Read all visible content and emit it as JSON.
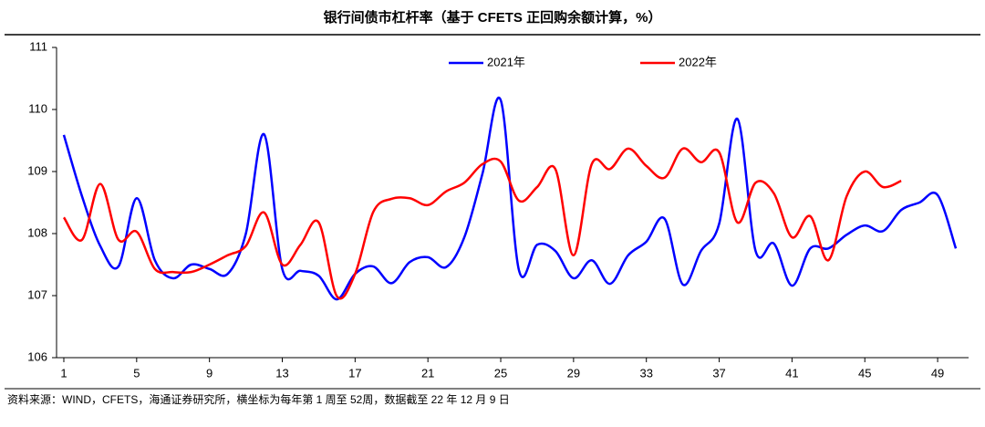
{
  "chart_data": {
    "type": "line",
    "title": "银行间债市杠杆率（基于 CFETS 正回购余额计算，%）",
    "source": "资料来源：WIND，CFETS，海通证券研究所，横坐标为每年第 1 周至 52周，数据截至 22 年 12 月 9 日",
    "x": [
      1,
      2,
      3,
      4,
      5,
      6,
      7,
      8,
      9,
      10,
      11,
      12,
      13,
      14,
      15,
      16,
      17,
      18,
      19,
      20,
      21,
      22,
      23,
      24,
      25,
      26,
      27,
      28,
      29,
      30,
      31,
      32,
      33,
      34,
      35,
      36,
      37,
      38,
      39,
      40,
      41,
      42,
      43,
      44,
      45,
      46,
      47,
      48,
      49,
      50
    ],
    "series": [
      {
        "name": "2021年",
        "color": "#0000ff",
        "values": [
          109.59,
          108.6,
          107.8,
          107.47,
          108.57,
          107.57,
          107.28,
          107.5,
          107.43,
          107.35,
          108.0,
          109.6,
          107.43,
          107.4,
          107.32,
          106.94,
          107.35,
          107.47,
          107.2,
          107.54,
          107.62,
          107.46,
          107.94,
          108.97,
          110.15,
          107.41,
          107.82,
          107.72,
          107.28,
          107.57,
          107.19,
          107.65,
          107.87,
          108.24,
          107.18,
          107.72,
          108.16,
          109.85,
          107.72,
          107.84,
          107.16,
          107.76,
          107.76,
          107.98,
          108.13,
          108.04,
          108.38,
          108.5,
          108.62,
          107.76
        ]
      },
      {
        "name": "2022年",
        "color": "#ff0000",
        "values": [
          108.26,
          107.9,
          108.8,
          107.9,
          108.03,
          107.43,
          107.38,
          107.38,
          107.5,
          107.65,
          107.8,
          108.34,
          107.5,
          107.82,
          108.18,
          106.99,
          107.35,
          108.35,
          108.56,
          108.57,
          108.46,
          108.68,
          108.82,
          109.12,
          109.16,
          108.53,
          108.75,
          109.04,
          107.65,
          109.12,
          109.04,
          109.37,
          109.09,
          108.9,
          109.37,
          109.15,
          109.31,
          108.18,
          108.82,
          108.65,
          107.94,
          108.28,
          107.57,
          108.6,
          109.0,
          108.75,
          108.85,
          null,
          null,
          null
        ]
      }
    ],
    "xlim": [
      0.6,
      50.7
    ],
    "xticks": [
      1,
      5,
      9,
      13,
      17,
      21,
      25,
      29,
      33,
      37,
      41,
      45,
      49
    ],
    "ylim": [
      106,
      111
    ],
    "yticks": [
      106,
      107,
      108,
      109,
      110,
      111
    ],
    "grid": false,
    "legend": "top"
  }
}
